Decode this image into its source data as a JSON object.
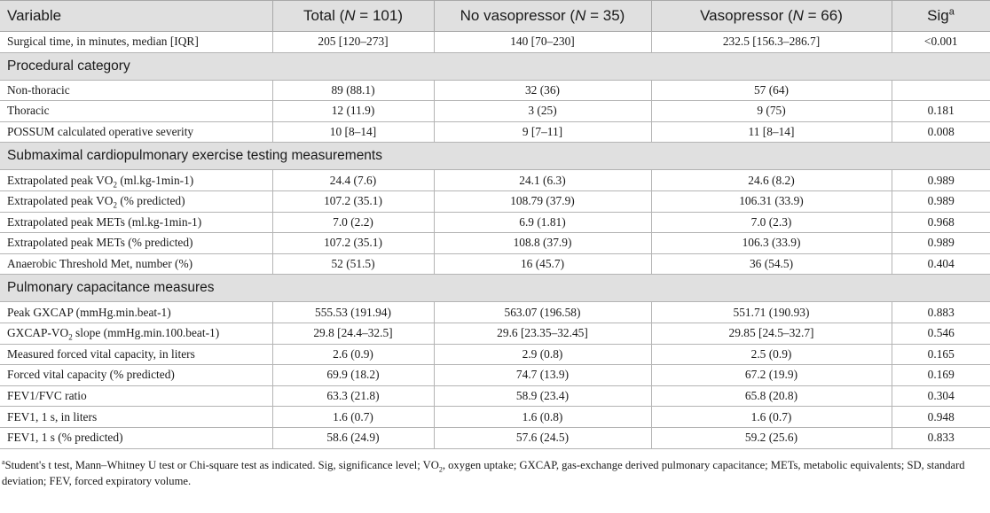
{
  "headers": {
    "variable": "Variable",
    "total": "Total (",
    "total_n": "N",
    "total_rest": " = 101)",
    "novaso": "No vasopressor (",
    "novaso_n": "N",
    "novaso_rest": " = 35)",
    "vaso": "Vasopressor (",
    "vaso_n": "N",
    "vaso_rest": " = 66)",
    "sig": "Sig",
    "sig_sup": "a"
  },
  "rows": {
    "r0": {
      "label": "Surgical time, in minutes, median [IQR]",
      "total": "205 [120–273]",
      "novaso": "140 [70–230]",
      "vaso": "232.5 [156.3–286.7]",
      "sig": "<0.001"
    },
    "s1": "Procedural category",
    "r1": {
      "label": "Non-thoracic",
      "total": "89 (88.1)",
      "novaso": "32 (36)",
      "vaso": "57 (64)",
      "sig": ""
    },
    "r2": {
      "label": "Thoracic",
      "total": "12 (11.9)",
      "novaso": "3 (25)",
      "vaso": "9 (75)",
      "sig": "0.181"
    },
    "r3": {
      "label": "POSSUM calculated operative severity",
      "total": "10 [8–14]",
      "novaso": "9 [7–11]",
      "vaso": "11 [8–14]",
      "sig": "0.008"
    },
    "s2": "Submaximal cardiopulmonary exercise testing measurements",
    "r4": {
      "label_a": "Extrapolated peak VO",
      "label_sub": "2",
      "label_b": " (ml.kg-1min-1)",
      "total": "24.4 (7.6)",
      "novaso": "24.1 (6.3)",
      "vaso": "24.6 (8.2)",
      "sig": "0.989"
    },
    "r5": {
      "label_a": "Extrapolated peak VO",
      "label_sub": "2",
      "label_b": " (% predicted)",
      "total": "107.2 (35.1)",
      "novaso": "108.79 (37.9)",
      "vaso": "106.31 (33.9)",
      "sig": "0.989"
    },
    "r6": {
      "label": "Extrapolated peak METs (ml.kg-1min-1)",
      "total": "7.0 (2.2)",
      "novaso": "6.9 (1.81)",
      "vaso": "7.0 (2.3)",
      "sig": "0.968"
    },
    "r7": {
      "label": "Extrapolated peak METs (% predicted)",
      "total": "107.2 (35.1)",
      "novaso": "108.8 (37.9)",
      "vaso": "106.3 (33.9)",
      "sig": "0.989"
    },
    "r8": {
      "label": "Anaerobic Threshold Met, number (%)",
      "total": "52 (51.5)",
      "novaso": "16 (45.7)",
      "vaso": "36 (54.5)",
      "sig": "0.404"
    },
    "s3": "Pulmonary capacitance measures",
    "r9": {
      "label": "Peak GXCAP (mmHg.min.beat-1)",
      "total": "555.53 (191.94)",
      "novaso": "563.07 (196.58)",
      "vaso": "551.71 (190.93)",
      "sig": "0.883"
    },
    "r10": {
      "label_a": "GXCAP-VO",
      "label_sub": "2",
      "label_b": " slope (mmHg.min.100.beat-1)",
      "total": "29.8 [24.4–32.5]",
      "novaso": "29.6 [23.35–32.45]",
      "vaso": "29.85 [24.5–32.7]",
      "sig": "0.546"
    },
    "r11": {
      "label": "Measured forced vital capacity, in liters",
      "total": "2.6 (0.9)",
      "novaso": "2.9 (0.8)",
      "vaso": "2.5 (0.9)",
      "sig": "0.165"
    },
    "r12": {
      "label": "Forced vital capacity (% predicted)",
      "total": "69.9 (18.2)",
      "novaso": "74.7 (13.9)",
      "vaso": "67.2 (19.9)",
      "sig": "0.169"
    },
    "r13": {
      "label": "FEV1/FVC ratio",
      "total": "63.3 (21.8)",
      "novaso": "58.9 (23.4)",
      "vaso": "65.8 (20.8)",
      "sig": "0.304"
    },
    "r14": {
      "label": "FEV1, 1 s, in liters",
      "total": "1.6 (0.7)",
      "novaso": "1.6 (0.8)",
      "vaso": "1.6 (0.7)",
      "sig": "0.948"
    },
    "r15": {
      "label": "FEV1, 1 s (% predicted)",
      "total": "58.6 (24.9)",
      "novaso": "57.6 (24.5)",
      "vaso": "59.2 (25.6)",
      "sig": "0.833"
    }
  },
  "footnote": {
    "sup": "a",
    "text": "Student's t test, Mann–Whitney U test or Chi-square test as indicated. Sig, significance level; VO",
    "sub": "2",
    "text2": ", oxygen uptake; GXCAP, gas-exchange derived pulmonary capacitance; METs, metabolic equivalents; SD, standard deviation; FEV, forced expiratory volume."
  }
}
